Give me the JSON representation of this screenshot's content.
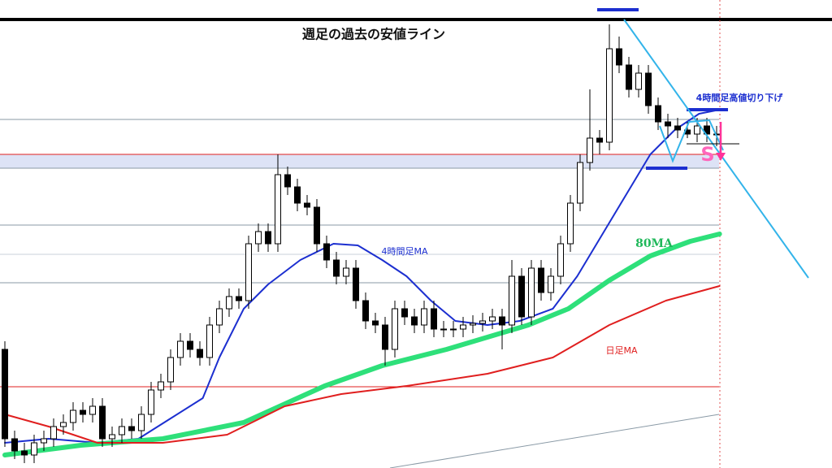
{
  "chart_data": {
    "type": "candlestick",
    "title": "週足の過去の安値ライン",
    "annotations": {
      "lower_highs": "4時間足高値切り下げ",
      "signal": "S"
    },
    "ylim": [
      0,
      576
    ],
    "xlim": [
      -0.5,
      76
    ],
    "open": [
      146,
      36,
      21,
      16,
      31,
      36,
      51,
      56,
      71,
      66,
      76,
      36,
      41,
      51,
      46,
      66,
      96,
      106,
      136,
      156,
      146,
      136,
      176,
      196,
      211,
      206,
      276,
      291,
      276,
      361,
      346,
      326,
      321,
      276,
      256,
      236,
      246,
      206,
      181,
      176,
      146,
      196,
      186,
      176,
      196,
      171,
      171,
      171,
      176,
      178,
      181,
      186,
      176,
      236,
      186,
      246,
      216,
      236,
      276,
      326,
      376,
      406,
      401,
      516,
      496,
      466,
      486,
      446,
      426,
      421,
      416,
      411,
      421,
      411
    ],
    "high": [
      156,
      46,
      31,
      41,
      46,
      61,
      66,
      81,
      81,
      86,
      86,
      51,
      61,
      61,
      76,
      106,
      116,
      146,
      166,
      166,
      156,
      186,
      206,
      221,
      221,
      286,
      301,
      301,
      386,
      371,
      356,
      336,
      331,
      286,
      266,
      256,
      256,
      216,
      191,
      186,
      206,
      206,
      196,
      206,
      206,
      181,
      181,
      186,
      188,
      191,
      196,
      196,
      256,
      246,
      256,
      256,
      246,
      286,
      336,
      386,
      466,
      416,
      546,
      531,
      506,
      496,
      496,
      456,
      436,
      431,
      426,
      431,
      431,
      421
    ],
    "low": [
      26,
      11,
      6,
      6,
      21,
      26,
      41,
      46,
      56,
      56,
      26,
      26,
      31,
      36,
      36,
      56,
      86,
      96,
      126,
      136,
      126,
      126,
      166,
      186,
      196,
      196,
      266,
      266,
      266,
      336,
      316,
      311,
      266,
      246,
      226,
      226,
      196,
      171,
      166,
      126,
      136,
      176,
      166,
      166,
      161,
      161,
      161,
      161,
      166,
      168,
      171,
      146,
      166,
      176,
      176,
      206,
      206,
      226,
      266,
      316,
      366,
      386,
      391,
      486,
      456,
      456,
      436,
      416,
      406,
      406,
      406,
      401,
      401,
      396
    ],
    "close": [
      36,
      21,
      16,
      31,
      36,
      51,
      56,
      71,
      66,
      76,
      36,
      41,
      51,
      46,
      66,
      96,
      106,
      136,
      156,
      146,
      136,
      176,
      196,
      211,
      206,
      276,
      291,
      276,
      361,
      346,
      326,
      321,
      276,
      256,
      236,
      246,
      206,
      181,
      176,
      146,
      196,
      186,
      176,
      196,
      171,
      171,
      171,
      176,
      178,
      181,
      186,
      176,
      236,
      186,
      246,
      216,
      236,
      276,
      326,
      376,
      406,
      401,
      516,
      496,
      466,
      486,
      446,
      426,
      421,
      416,
      411,
      421,
      411,
      411
    ],
    "series": [
      {
        "name": "4時間足MA",
        "color": "#1c2fd0",
        "x": [
          0,
          4.5,
          9.5,
          13.7,
          17,
          20.3,
          22,
          24.5,
          27,
          30.3,
          33.7,
          36.2,
          38.7,
          41.2,
          43.7,
          46.2,
          49.5,
          52.8,
          56.2,
          58.7,
          61.2,
          63.7,
          66.2,
          68.7,
          71.2,
          73.3
        ],
        "values": [
          31,
          36,
          31,
          36,
          61,
          86,
          136,
          196,
          226,
          256,
          276,
          274,
          256,
          236,
          206,
          181,
          176,
          181,
          196,
          236,
          286,
          336,
          386,
          416,
          436,
          441
        ]
      },
      {
        "name": "80MA",
        "color": "#2ee07a",
        "x": [
          0,
          7.8,
          16.2,
          24.5,
          32.8,
          38.7,
          45.3,
          53.7,
          57.8,
          62,
          66.2,
          70.3,
          73.3
        ],
        "values": [
          16,
          28,
          36,
          56,
          101,
          126,
          146,
          176,
          196,
          231,
          261,
          279,
          288
        ]
      },
      {
        "name": "日足MA",
        "color": "#e01f1f",
        "x": [
          0,
          4.5,
          9.5,
          16.2,
          22.8,
          28.7,
          34.5,
          41.2,
          49.5,
          56.2,
          62,
          67.8,
          73.3
        ],
        "values": [
          66,
          51,
          31,
          31,
          41,
          76,
          91,
          101,
          116,
          136,
          176,
          206,
          224
        ]
      }
    ],
    "levels": [
      {
        "value": 429,
        "color": "#8a9aa6"
      },
      {
        "value": 386,
        "color": "#e01f1f"
      },
      {
        "value": 369,
        "color": "#8a9aa6"
      },
      {
        "value": 299,
        "color": "#8a9aa6"
      },
      {
        "value": 263,
        "color": "#c9d2d8"
      },
      {
        "value": 228,
        "color": "#8a9aa6"
      },
      {
        "value": 100,
        "color": "#e01f1f"
      }
    ],
    "zone": [
      369,
      386
    ]
  }
}
